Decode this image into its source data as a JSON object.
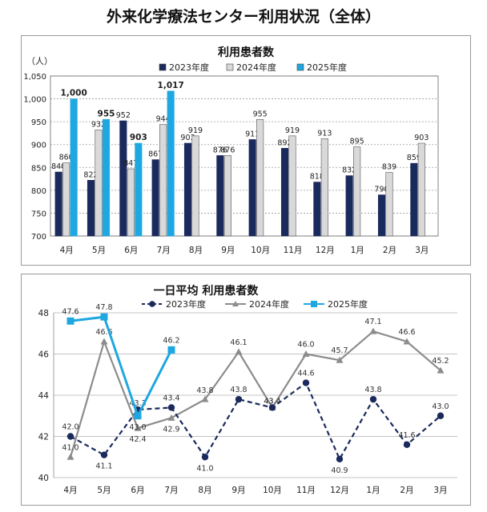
{
  "page_title": "外来化学療法センター利用状況（全体）",
  "chart_data": [
    {
      "type": "bar",
      "title": "利用患者数",
      "ylabel": "（人）",
      "ylim": [
        700,
        1050
      ],
      "yticks": [
        700,
        750,
        800,
        850,
        900,
        950,
        "1,000",
        "1,050"
      ],
      "grid": true,
      "legend_position": "top",
      "categories": [
        "4月",
        "5月",
        "6月",
        "7月",
        "8月",
        "9月",
        "10月",
        "11月",
        "12月",
        "1月",
        "2月",
        "3月"
      ],
      "series": [
        {
          "name": "2023年度",
          "color": "#1b2a5c",
          "values": [
            840,
            822,
            952,
            867,
            903,
            876,
            911,
            892,
            818,
            832,
            790,
            859
          ]
        },
        {
          "name": "2024年度",
          "color": "#d9d9d9",
          "values": [
            860,
            932,
            847,
            944,
            919,
            876,
            955,
            919,
            913,
            895,
            839,
            903
          ]
        },
        {
          "name": "2025年度",
          "color": "#1ea7e1",
          "values": [
            1000,
            955,
            903,
            1017,
            null,
            null,
            null,
            null,
            null,
            null,
            null,
            null
          ]
        }
      ],
      "labels": {
        "2023": [
          "840",
          "822",
          "952",
          "867",
          "903",
          "876",
          "911",
          "892",
          "818",
          "832",
          "790",
          "859"
        ],
        "2024": [
          "860",
          "932",
          "847",
          "944",
          "919",
          "876",
          "955",
          "919",
          "913",
          "895",
          "839",
          "903"
        ],
        "2025": [
          "1,000",
          "955",
          "903",
          "1,017"
        ]
      }
    },
    {
      "type": "line",
      "title": "一日平均 利用患者数",
      "ylim": [
        40,
        48
      ],
      "yticks": [
        40,
        42,
        44,
        46,
        48
      ],
      "grid": true,
      "legend_position": "top",
      "categories": [
        "4月",
        "5月",
        "6月",
        "7月",
        "8月",
        "9月",
        "10月",
        "11月",
        "12月",
        "1月",
        "2月",
        "3月"
      ],
      "series": [
        {
          "name": "2023年度",
          "color": "#1b2a5c",
          "style": "dashed",
          "marker": "circle",
          "values": [
            42.0,
            41.1,
            43.3,
            43.4,
            41.0,
            43.8,
            43.4,
            44.6,
            40.9,
            43.8,
            41.6,
            43.0
          ]
        },
        {
          "name": "2024年度",
          "color": "#8c8c8c",
          "style": "solid",
          "marker": "triangle",
          "values": [
            41.0,
            46.6,
            42.4,
            42.9,
            43.8,
            46.1,
            43.4,
            46.0,
            45.7,
            47.1,
            46.6,
            45.2
          ]
        },
        {
          "name": "2025年度",
          "color": "#1ea7e1",
          "style": "solid",
          "marker": "square",
          "values": [
            47.6,
            47.8,
            43.0,
            46.2,
            null,
            null,
            null,
            null,
            null,
            null,
            null,
            null
          ]
        }
      ]
    }
  ]
}
